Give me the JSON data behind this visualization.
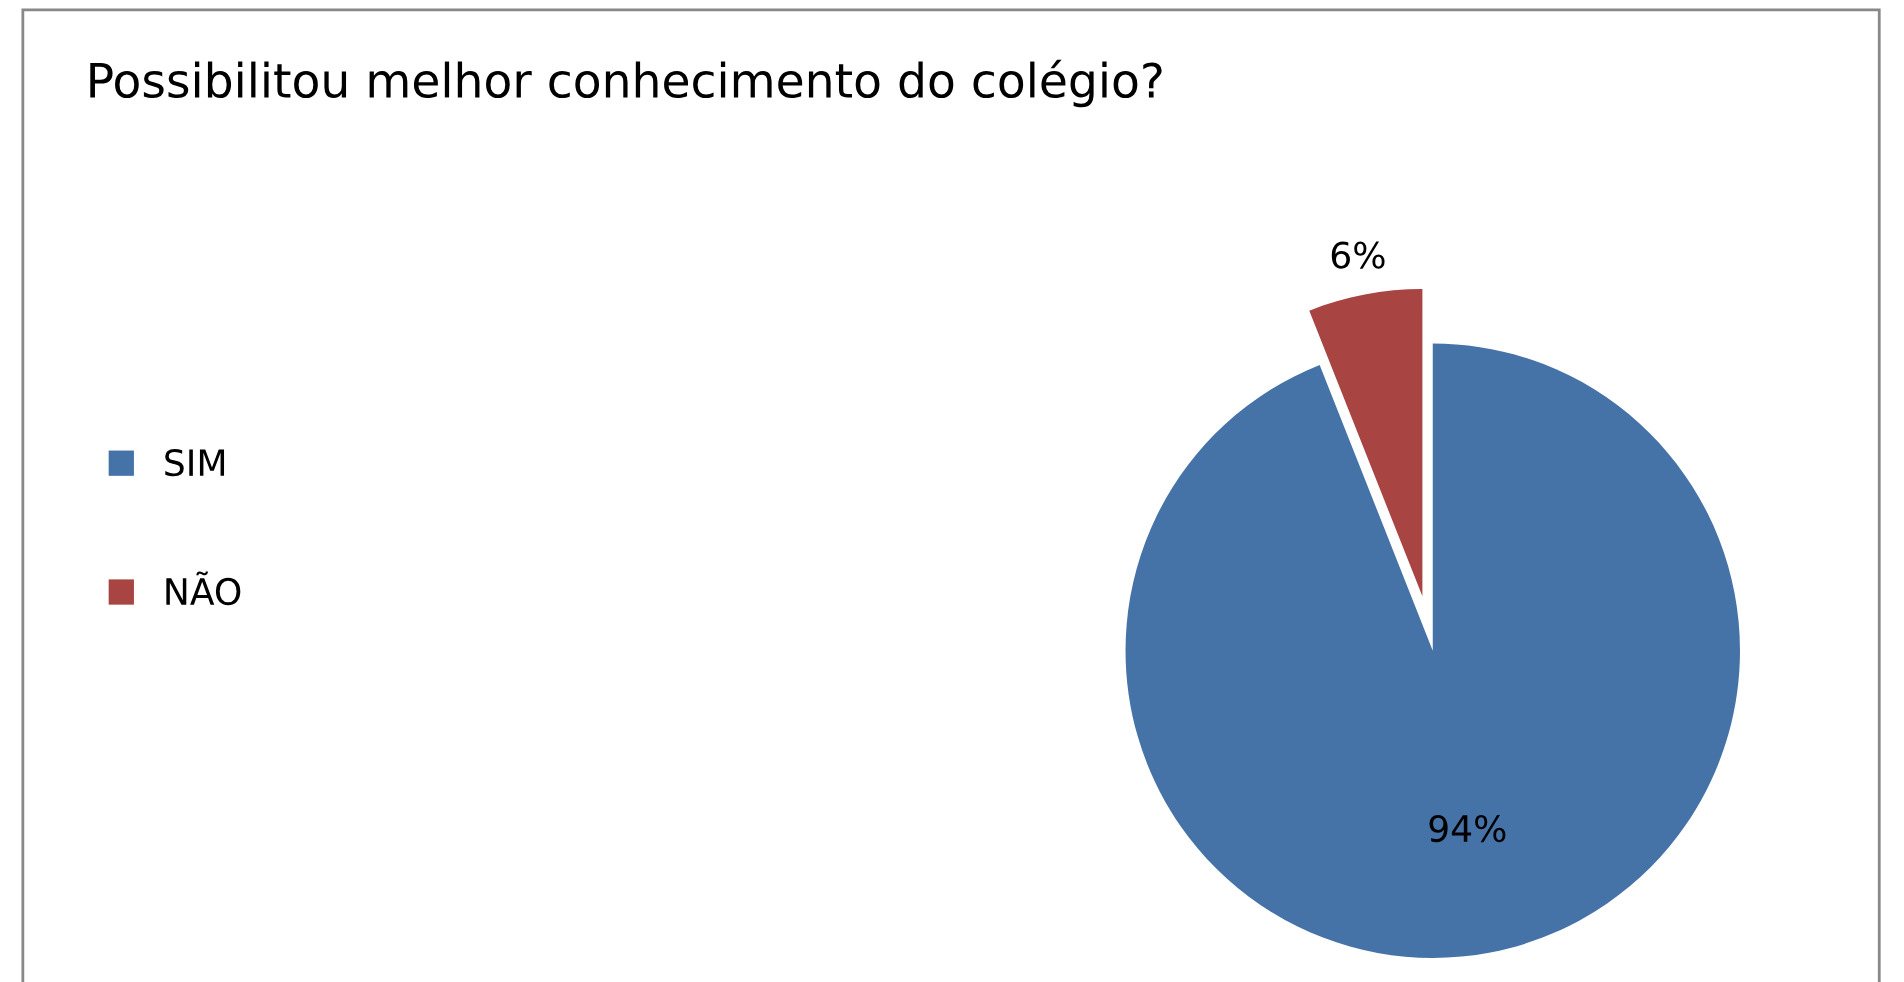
{
  "chart_data": {
    "type": "pie",
    "title": "Possibilitou melhor conhecimento do colégio?",
    "categories": [
      "SIM",
      "NÃO"
    ],
    "values": [
      94,
      6
    ],
    "colors": [
      "#4673a7",
      "#a84543"
    ],
    "value_labels": [
      "94%",
      "6%"
    ],
    "legend": "left"
  }
}
